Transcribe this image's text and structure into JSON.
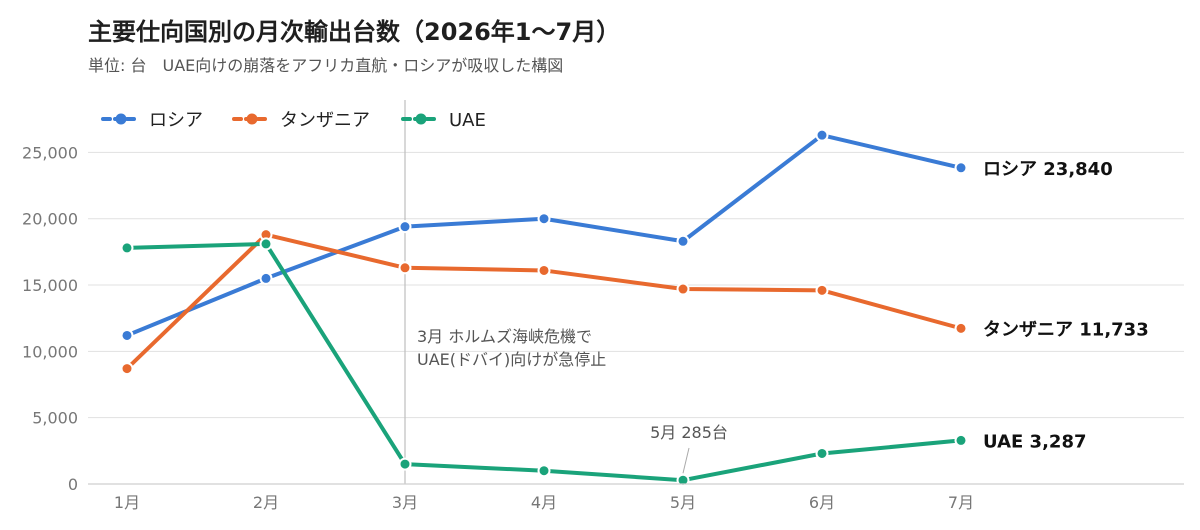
{
  "header": {
    "title": "主要仕向国別の月次輸出台数（2026年1〜7月）",
    "subtitle": "単位: 台　UAE向けの崩落をアフリカ直航・ロシアが吸収した構図"
  },
  "chart_data": {
    "type": "line",
    "categories": [
      "1月",
      "2月",
      "3月",
      "4月",
      "5月",
      "6月",
      "7月"
    ],
    "ylim": [
      0,
      27000
    ],
    "yticks": [
      0,
      5000,
      10000,
      15000,
      20000,
      25000
    ],
    "ytick_labels": [
      "0",
      "5,000",
      "10,000",
      "15,000",
      "20,000",
      "25,000"
    ],
    "grid": true,
    "legend": "top-left",
    "series": [
      {
        "name": "ロシア",
        "color": "#3a7bd5",
        "values": [
          11200,
          15500,
          19400,
          20000,
          18300,
          26300,
          23840
        ],
        "end_label": "ロシア 23,840"
      },
      {
        "name": "タンザニア",
        "color": "#e8692e",
        "values": [
          8700,
          18800,
          16300,
          16100,
          14700,
          14600,
          11733
        ],
        "end_label": "タンザニア 11,733"
      },
      {
        "name": "UAE",
        "color": "#1aa37a",
        "values": [
          17800,
          18100,
          1500,
          1000,
          285,
          2300,
          3287
        ],
        "end_label": "UAE 3,287"
      }
    ],
    "annotations": [
      {
        "category": "3月",
        "lines": [
          "3月 ホルムズ海峡危機で",
          "UAE(ドバイ)向けが急停止"
        ]
      },
      {
        "category": "5月",
        "series": "UAE",
        "text": "5月 285台"
      }
    ]
  }
}
